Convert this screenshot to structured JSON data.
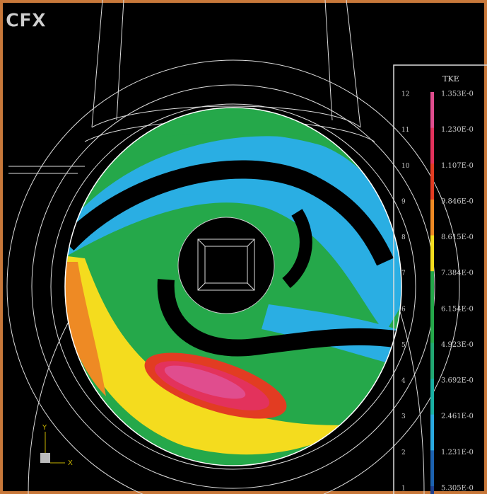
{
  "logo": "CFX",
  "legend": {
    "title": "TKE",
    "levels": [
      {
        "index": "12",
        "label": "1.353E-0",
        "color": "#e04d8e"
      },
      {
        "index": "11",
        "label": "1.230E-0",
        "color": "#e3325c"
      },
      {
        "index": "10",
        "label": "1.107E-0",
        "color": "#e23c22"
      },
      {
        "index": "9",
        "label": "9.846E-0",
        "color": "#ee8a24"
      },
      {
        "index": "8",
        "label": "8.615E-0",
        "color": "#f4dc1e"
      },
      {
        "index": "7",
        "label": "7.384E-0",
        "color": "#25a84a"
      },
      {
        "index": "6",
        "label": "6.154E-0",
        "color": "#25a84a"
      },
      {
        "index": "5",
        "label": "4.923E-0",
        "color": "#22a873"
      },
      {
        "index": "4",
        "label": "3.692E-0",
        "color": "#1ab0a4"
      },
      {
        "index": "3",
        "label": "2.461E-0",
        "color": "#2aa9e0"
      },
      {
        "index": "2",
        "label": "1.231E-0",
        "color": "#1c62b0"
      },
      {
        "index": "1",
        "label": "5.305E-0",
        "color": "#1c3f8f"
      }
    ]
  },
  "axes": {
    "y": "Y",
    "x": "X"
  }
}
